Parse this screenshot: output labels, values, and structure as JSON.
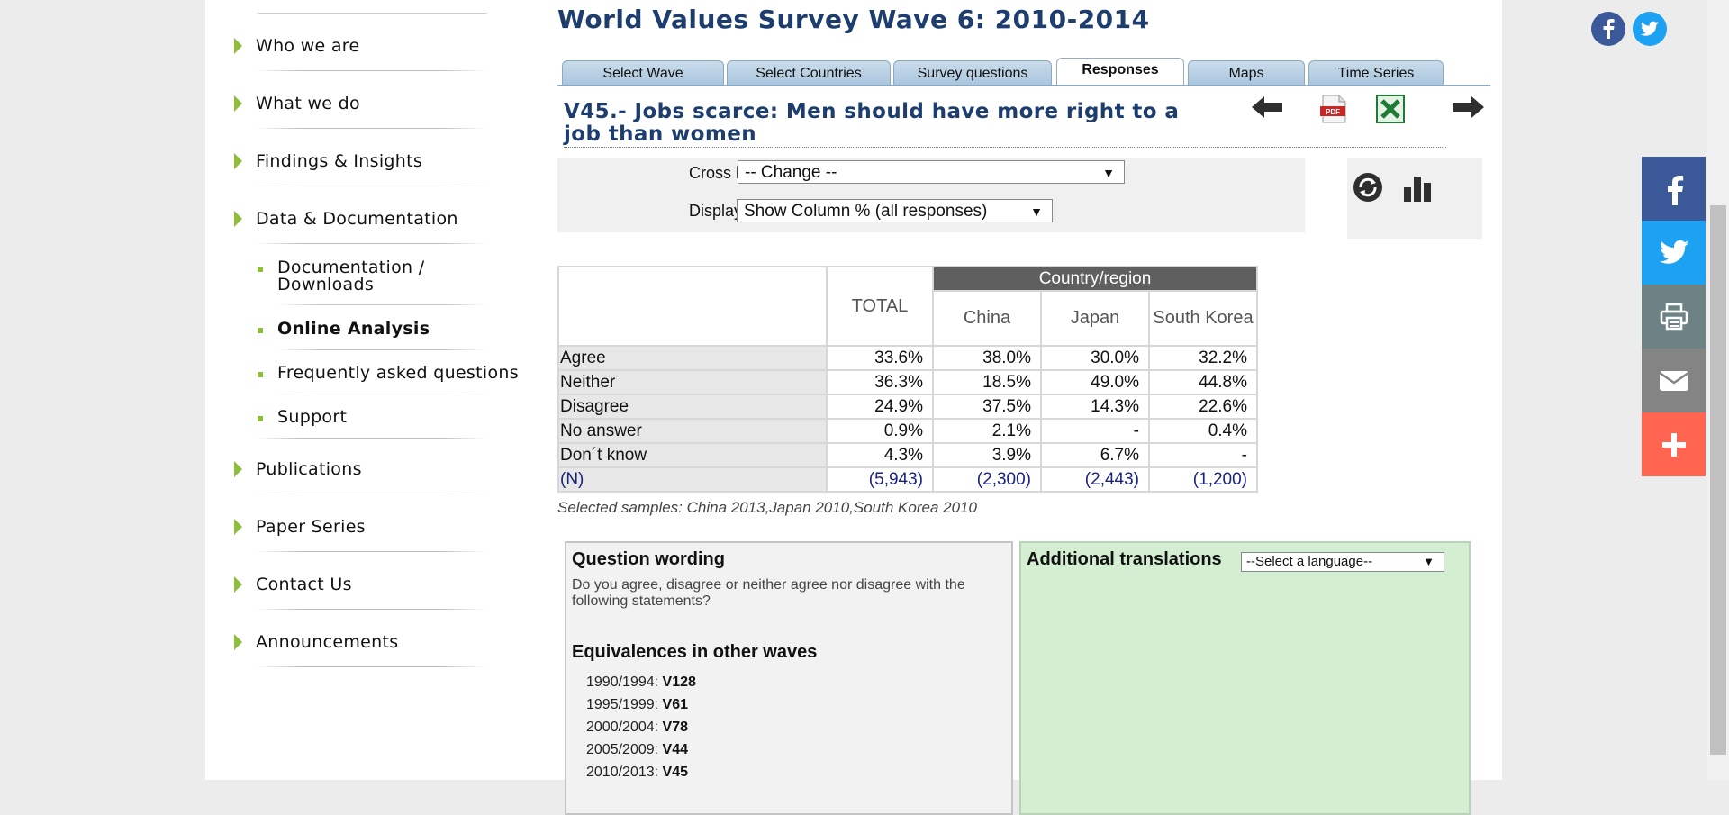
{
  "sidebar": {
    "items": [
      {
        "label": "Who we are"
      },
      {
        "label": "What we do"
      },
      {
        "label": "Findings & Insights"
      },
      {
        "label": "Data & Documentation"
      },
      {
        "label": "Publications"
      },
      {
        "label": "Paper Series"
      },
      {
        "label": "Contact Us"
      },
      {
        "label": "Announcements"
      }
    ],
    "subitems": [
      {
        "label": "Documentation / Downloads"
      },
      {
        "label": "Online Analysis",
        "active": true
      },
      {
        "label": "Frequently asked questions"
      },
      {
        "label": "Support"
      }
    ]
  },
  "main": {
    "title": "World Values Survey Wave 6: 2010-2014",
    "tabs": [
      {
        "label": "Select Wave"
      },
      {
        "label": "Select Countries"
      },
      {
        "label": "Survey questions"
      },
      {
        "label": "Responses",
        "active": true
      },
      {
        "label": "Maps"
      },
      {
        "label": "Time Series"
      }
    ],
    "question_title": "V45.- Jobs scarce: Men should have more right to a job than women",
    "icons": [
      "arrow-left-icon",
      "pdf-icon",
      "excel-icon",
      "arrow-right-icon",
      "refresh-icon",
      "bar-chart-icon"
    ],
    "cross_by": {
      "label": "Cross by",
      "value": "-- Change --"
    },
    "display": {
      "label": "Display",
      "value": "Show Column % (all responses)"
    }
  },
  "table": {
    "total_header": "TOTAL",
    "group_header": "Country/region",
    "countries": [
      "China",
      "Japan",
      "South Korea"
    ],
    "rows": [
      {
        "label": "Agree",
        "values": [
          "33.6%",
          "38.0%",
          "30.0%",
          "32.2%"
        ]
      },
      {
        "label": "Neither",
        "values": [
          "36.3%",
          "18.5%",
          "49.0%",
          "44.8%"
        ]
      },
      {
        "label": "Disagree",
        "values": [
          "24.9%",
          "37.5%",
          "14.3%",
          "22.6%"
        ]
      },
      {
        "label": "No answer",
        "values": [
          "0.9%",
          "2.1%",
          "-",
          "0.4%"
        ]
      },
      {
        "label": "Don´t know",
        "values": [
          "4.3%",
          "3.9%",
          "6.7%",
          "-"
        ]
      },
      {
        "label": "(N)",
        "values": [
          "(5,943)",
          "(2,300)",
          "(2,443)",
          "(1,200)"
        ]
      }
    ],
    "samples": "Selected samples: China 2013,Japan 2010,South Korea 2010"
  },
  "question_wording": {
    "heading": "Question wording",
    "text": "Do you agree, disagree or neither agree nor disagree with the following statements?",
    "equivalences_heading": "Equivalences in other waves",
    "equivalences": [
      {
        "period": "1990/1994:",
        "var": "V128"
      },
      {
        "period": "1995/1999:",
        "var": "V61"
      },
      {
        "period": "2000/2004:",
        "var": "V78"
      },
      {
        "period": "2005/2009:",
        "var": "V44"
      },
      {
        "period": "2010/2013:",
        "var": "V45"
      }
    ]
  },
  "translations": {
    "heading": "Additional translations",
    "select_value": "--Select a language--"
  },
  "social": {
    "top": [
      "facebook-icon",
      "twitter-icon"
    ],
    "share": [
      {
        "name": "facebook-share",
        "color": "#3b5998"
      },
      {
        "name": "twitter-share",
        "color": "#1da1f2"
      },
      {
        "name": "print-share",
        "color": "#6d8285"
      },
      {
        "name": "email-share",
        "color": "#848484"
      },
      {
        "name": "more-share",
        "color": "#ff6550"
      }
    ]
  }
}
